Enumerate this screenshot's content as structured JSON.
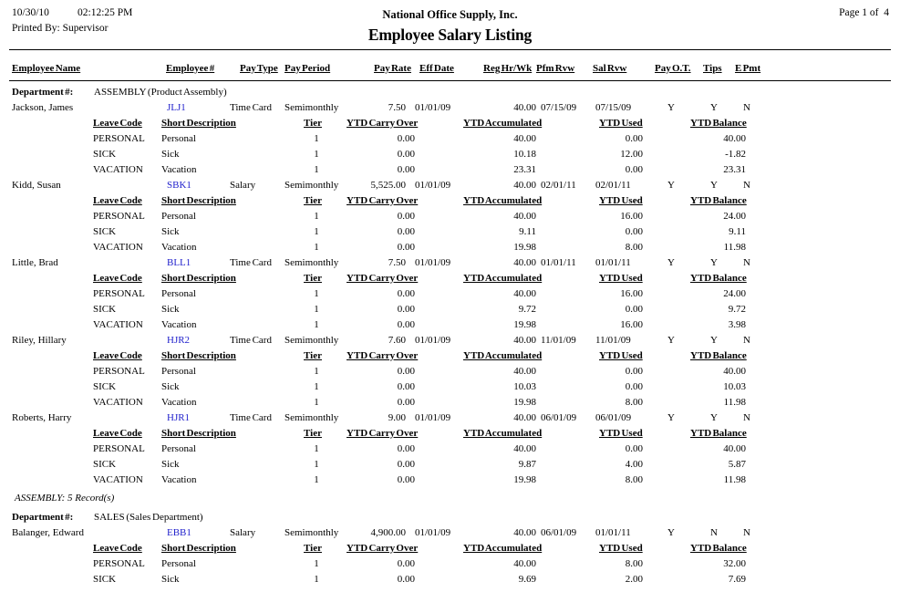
{
  "header": {
    "date": "10/30/10",
    "time": "02:12:25 PM",
    "printed_by": "Printed By: Supervisor",
    "company": "National Office Supply, Inc.",
    "title": "Employee Salary Listing",
    "page": "Page 1 of  4"
  },
  "columns": {
    "name": "Employee Name",
    "number": "Employee #",
    "pay_type": "Pay Type",
    "pay_period": "Pay Period",
    "pay_rate": "Pay Rate",
    "eff_date": "Eff Date",
    "reg_hr_wk": "Reg Hr/Wk",
    "pfm_rvw": "Pfm Rvw",
    "sal_rvw": "Sal Rvw",
    "pay_ot": "Pay O.T.",
    "tips": "Tips",
    "e_pmt": "E Pmt"
  },
  "leave_columns": {
    "code": "Leave Code",
    "desc": "Short Description",
    "tier": "Tier",
    "carry": "YTD Carry Over",
    "accum": "YTD Accumulated",
    "used": "YTD Used",
    "balance": "YTD Balance"
  },
  "department_label": "Department #:",
  "colors": {
    "employee_number_link": "#2222CC",
    "text": "#000000"
  },
  "sections": [
    {
      "department": "ASSEMBLY (Product Assembly)",
      "summary": "ASSEMBLY: 5 Record(s)",
      "employees": [
        {
          "name": "Jackson, James",
          "number": "JLJ1",
          "pay_type": "Time Card",
          "pay_period": "Semimonthly",
          "pay_rate": "7.50",
          "eff_date": "01/01/09",
          "reg_hr_wk": "40.00",
          "pfm_rvw": "07/15/09",
          "sal_rvw": "07/15/09",
          "pay_ot": "Y",
          "tips": "Y",
          "e_pmt": "N",
          "leaves": [
            {
              "code": "PERSONAL",
              "desc": "Personal",
              "tier": "1",
              "carry": "0.00",
              "accum": "40.00",
              "used": "0.00",
              "balance": "40.00"
            },
            {
              "code": "SICK",
              "desc": "Sick",
              "tier": "1",
              "carry": "0.00",
              "accum": "10.18",
              "used": "12.00",
              "balance": "-1.82"
            },
            {
              "code": "VACATION",
              "desc": "Vacation",
              "tier": "1",
              "carry": "0.00",
              "accum": "23.31",
              "used": "0.00",
              "balance": "23.31"
            }
          ]
        },
        {
          "name": "Kidd, Susan",
          "number": "SBK1",
          "pay_type": "Salary",
          "pay_period": "Semimonthly",
          "pay_rate": "5,525.00",
          "eff_date": "01/01/09",
          "reg_hr_wk": "40.00",
          "pfm_rvw": "02/01/11",
          "sal_rvw": "02/01/11",
          "pay_ot": "Y",
          "tips": "Y",
          "e_pmt": "N",
          "leaves": [
            {
              "code": "PERSONAL",
              "desc": "Personal",
              "tier": "1",
              "carry": "0.00",
              "accum": "40.00",
              "used": "16.00",
              "balance": "24.00"
            },
            {
              "code": "SICK",
              "desc": "Sick",
              "tier": "1",
              "carry": "0.00",
              "accum": "9.11",
              "used": "0.00",
              "balance": "9.11"
            },
            {
              "code": "VACATION",
              "desc": "Vacation",
              "tier": "1",
              "carry": "0.00",
              "accum": "19.98",
              "used": "8.00",
              "balance": "11.98"
            }
          ]
        },
        {
          "name": "Little, Brad",
          "number": "BLL1",
          "pay_type": "Time Card",
          "pay_period": "Semimonthly",
          "pay_rate": "7.50",
          "eff_date": "01/01/09",
          "reg_hr_wk": "40.00",
          "pfm_rvw": "01/01/11",
          "sal_rvw": "01/01/11",
          "pay_ot": "Y",
          "tips": "Y",
          "e_pmt": "N",
          "leaves": [
            {
              "code": "PERSONAL",
              "desc": "Personal",
              "tier": "1",
              "carry": "0.00",
              "accum": "40.00",
              "used": "16.00",
              "balance": "24.00"
            },
            {
              "code": "SICK",
              "desc": "Sick",
              "tier": "1",
              "carry": "0.00",
              "accum": "9.72",
              "used": "0.00",
              "balance": "9.72"
            },
            {
              "code": "VACATION",
              "desc": "Vacation",
              "tier": "1",
              "carry": "0.00",
              "accum": "19.98",
              "used": "16.00",
              "balance": "3.98"
            }
          ]
        },
        {
          "name": "Riley, Hillary",
          "number": "HJR2",
          "pay_type": "Time Card",
          "pay_period": "Semimonthly",
          "pay_rate": "7.60",
          "eff_date": "01/01/09",
          "reg_hr_wk": "40.00",
          "pfm_rvw": "11/01/09",
          "sal_rvw": "11/01/09",
          "pay_ot": "Y",
          "tips": "Y",
          "e_pmt": "N",
          "leaves": [
            {
              "code": "PERSONAL",
              "desc": "Personal",
              "tier": "1",
              "carry": "0.00",
              "accum": "40.00",
              "used": "0.00",
              "balance": "40.00"
            },
            {
              "code": "SICK",
              "desc": "Sick",
              "tier": "1",
              "carry": "0.00",
              "accum": "10.03",
              "used": "0.00",
              "balance": "10.03"
            },
            {
              "code": "VACATION",
              "desc": "Vacation",
              "tier": "1",
              "carry": "0.00",
              "accum": "19.98",
              "used": "8.00",
              "balance": "11.98"
            }
          ]
        },
        {
          "name": "Roberts, Harry",
          "number": "HJR1",
          "pay_type": "Time Card",
          "pay_period": "Semimonthly",
          "pay_rate": "9.00",
          "eff_date": "01/01/09",
          "reg_hr_wk": "40.00",
          "pfm_rvw": "06/01/09",
          "sal_rvw": "06/01/09",
          "pay_ot": "Y",
          "tips": "Y",
          "e_pmt": "N",
          "leaves": [
            {
              "code": "PERSONAL",
              "desc": "Personal",
              "tier": "1",
              "carry": "0.00",
              "accum": "40.00",
              "used": "0.00",
              "balance": "40.00"
            },
            {
              "code": "SICK",
              "desc": "Sick",
              "tier": "1",
              "carry": "0.00",
              "accum": "9.87",
              "used": "4.00",
              "balance": "5.87"
            },
            {
              "code": "VACATION",
              "desc": "Vacation",
              "tier": "1",
              "carry": "0.00",
              "accum": "19.98",
              "used": "8.00",
              "balance": "11.98"
            }
          ]
        }
      ]
    },
    {
      "department": "SALES (Sales Department)",
      "summary": null,
      "employees": [
        {
          "name": "Balanger, Edward",
          "number": "EBB1",
          "pay_type": "Salary",
          "pay_period": "Semimonthly",
          "pay_rate": "4,900.00",
          "eff_date": "01/01/09",
          "reg_hr_wk": "40.00",
          "pfm_rvw": "06/01/09",
          "sal_rvw": "01/01/11",
          "pay_ot": "Y",
          "tips": "N",
          "e_pmt": "N",
          "leaves": [
            {
              "code": "PERSONAL",
              "desc": "Personal",
              "tier": "1",
              "carry": "0.00",
              "accum": "40.00",
              "used": "8.00",
              "balance": "32.00"
            },
            {
              "code": "SICK",
              "desc": "Sick",
              "tier": "1",
              "carry": "0.00",
              "accum": "9.69",
              "used": "2.00",
              "balance": "7.69"
            }
          ]
        }
      ]
    }
  ]
}
